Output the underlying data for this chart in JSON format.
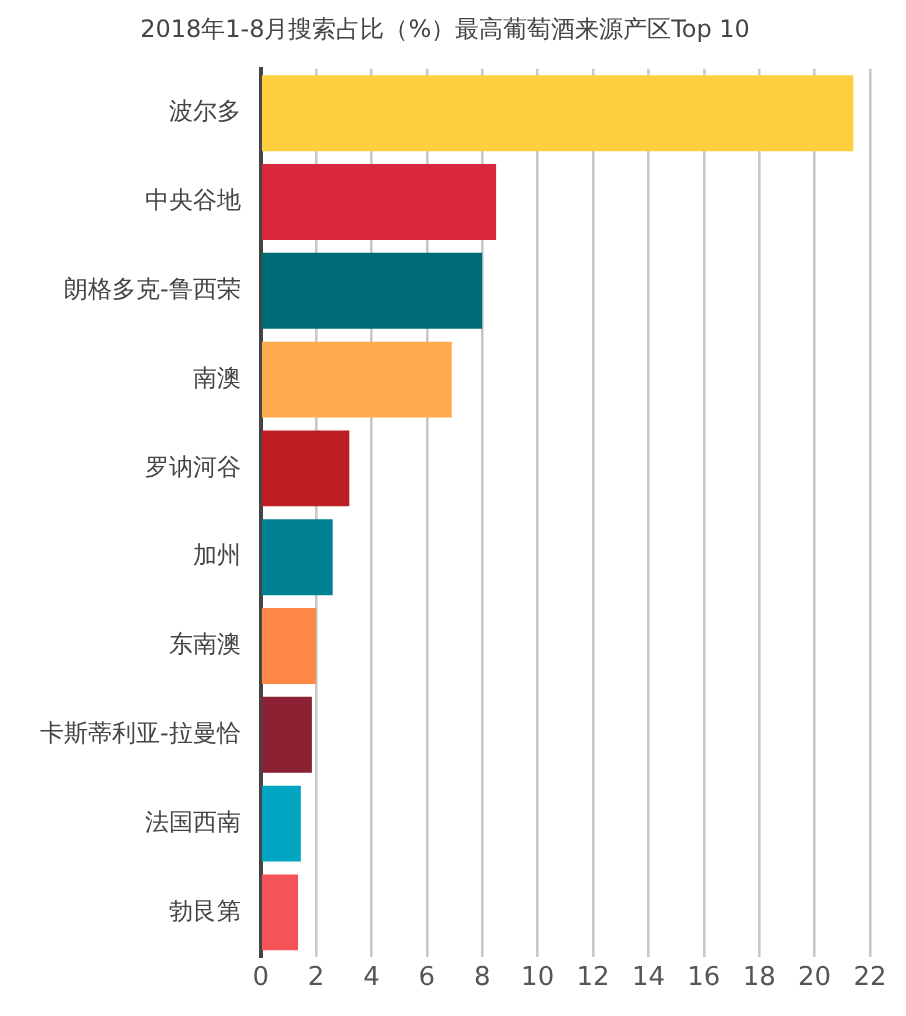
{
  "chart_data": {
    "type": "bar",
    "orientation": "horizontal",
    "title": "2018年1-8月搜索占比（%）最高葡萄酒来源产区Top 10",
    "categories": [
      "波尔多",
      "中央谷地",
      "朗格多克-鲁西荣",
      "南澳",
      "罗讷河谷",
      "加州",
      "东南澳",
      "卡斯蒂利亚-拉曼恰",
      "法国西南",
      "勃艮第"
    ],
    "values": [
      21.4,
      8.5,
      8.0,
      6.9,
      3.2,
      2.6,
      2.0,
      1.85,
      1.45,
      1.35
    ],
    "colors": [
      "#fecf3e",
      "#d9273c",
      "#006b77",
      "#fdab4d",
      "#bd1e24",
      "#008193",
      "#fd8745",
      "#8b2133",
      "#00a5c2",
      "#f5525a"
    ],
    "xlim": [
      0,
      22
    ],
    "xticks": [
      0,
      2,
      4,
      6,
      8,
      10,
      12,
      14,
      16,
      18,
      20,
      22
    ],
    "grid": "x",
    "legend": false
  }
}
